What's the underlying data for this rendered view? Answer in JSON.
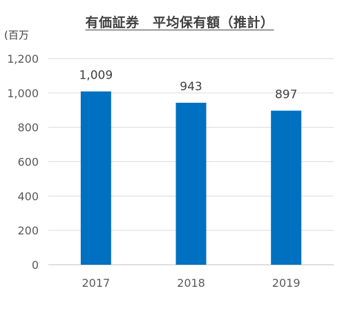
{
  "chart_data": {
    "type": "bar",
    "title": "有価証券　平均保有額（推計）",
    "ylabel": "(百万",
    "xlabel": "",
    "categories": [
      "2017",
      "2018",
      "2019"
    ],
    "values": [
      1009,
      943,
      897
    ],
    "data_labels": [
      "1,009",
      "943",
      "897"
    ],
    "yticks": [
      0,
      200,
      400,
      600,
      800,
      1000,
      1200
    ],
    "ytick_labels": [
      "0",
      "200",
      "400",
      "600",
      "800",
      "1,000",
      "1,200"
    ],
    "ylim": [
      0,
      1200
    ],
    "grid": true,
    "legend": "none",
    "colors": {
      "bar": "#0070C0",
      "grid": "#D9D9D9",
      "axis": "#BFBFBF"
    }
  }
}
